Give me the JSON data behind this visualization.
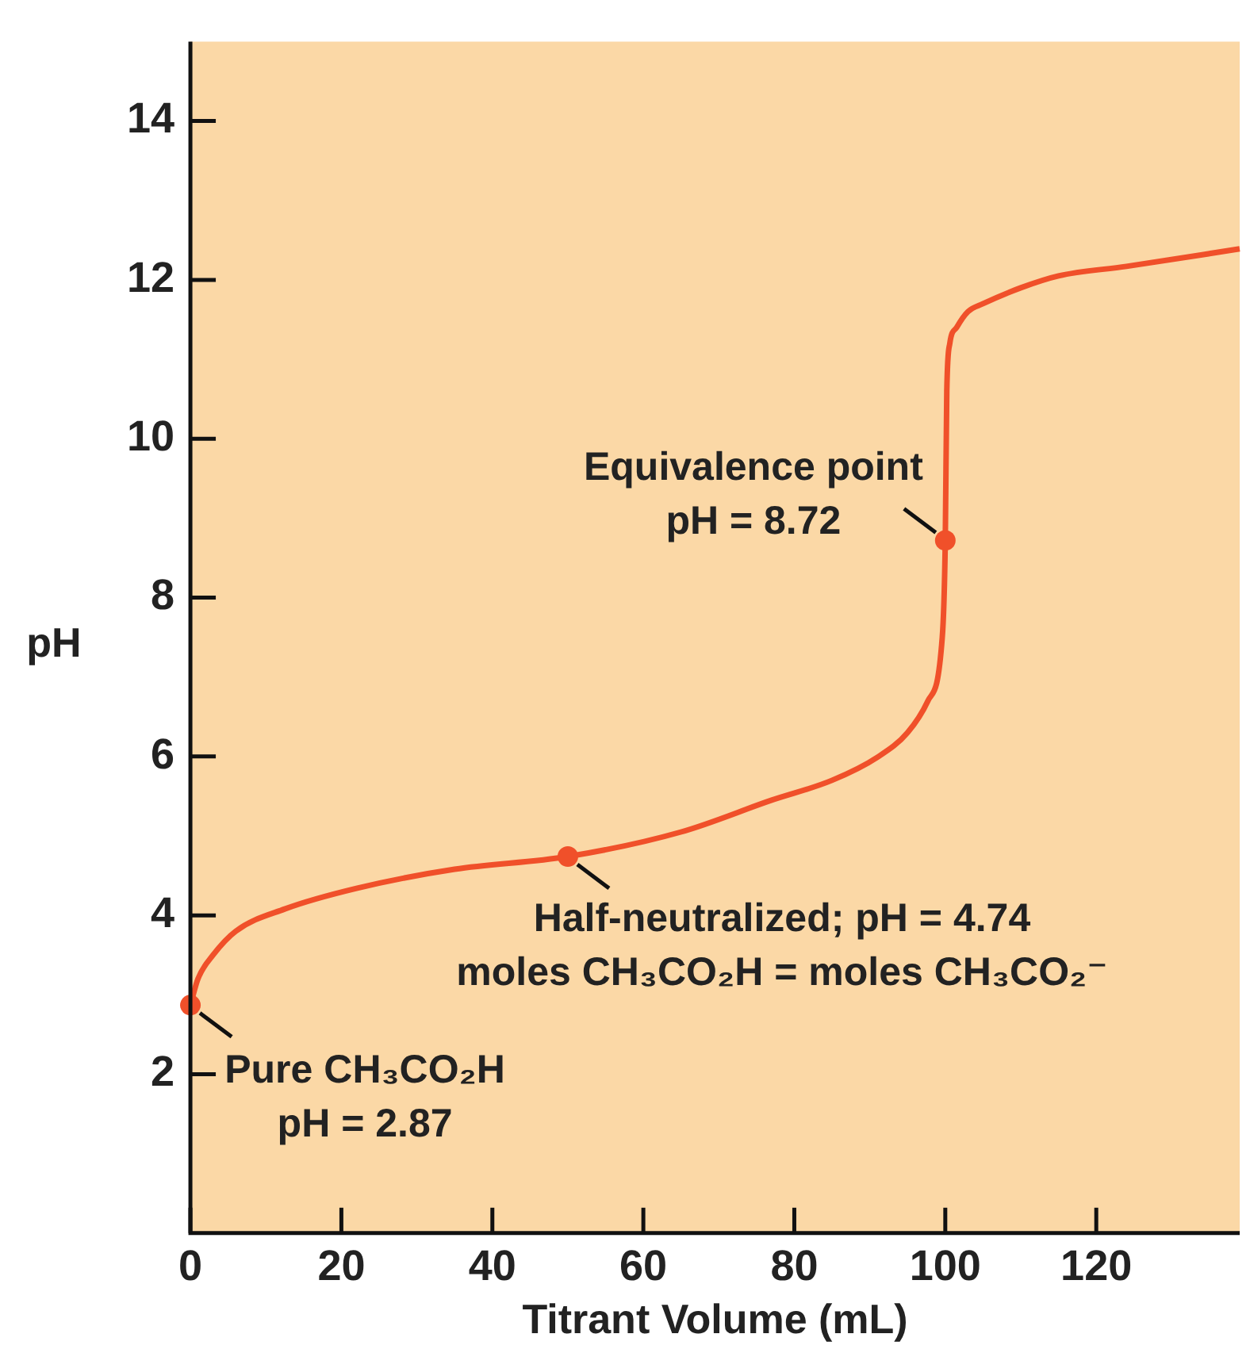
{
  "chart_data": {
    "type": "line",
    "xlabel": "Titrant Volume (mL)",
    "ylabel": "pH",
    "xlim": [
      0,
      139
    ],
    "xticks": [
      0,
      20,
      40,
      60,
      80,
      100,
      120
    ],
    "ylim": [
      0,
      15
    ],
    "yticks": [
      2,
      4,
      6,
      8,
      10,
      12,
      14
    ],
    "grid": false,
    "legend": false,
    "marker": "none",
    "line_style": "solid",
    "series": [
      {
        "type": "line",
        "color": "#f0502a",
        "x": [
          0,
          1,
          3,
          6,
          12.5,
          22,
          35,
          50,
          65,
          77,
          85,
          91,
          95,
          97.7,
          99.6,
          100,
          100.2,
          100.6,
          101.5,
          103,
          105,
          110,
          115,
          124,
          139
        ],
        "values": [
          2.87,
          3.2,
          3.5,
          3.8,
          4.08,
          4.34,
          4.58,
          4.74,
          5.05,
          5.45,
          5.7,
          5.99,
          6.3,
          6.7,
          7.5,
          8.72,
          10.6,
          11.2,
          11.4,
          11.6,
          11.7,
          11.9,
          12.05,
          12.17,
          12.39
        ]
      },
      {
        "type": "scatter",
        "color": "#f0502a",
        "marker": "circle",
        "x": [
          0,
          50,
          100
        ],
        "values": [
          2.87,
          4.74,
          8.72
        ]
      }
    ],
    "annotations": [
      {
        "text": "Pure CH₃CO₂H\npH = 2.87",
        "x": 0,
        "y": 2.87
      },
      {
        "text": "Half-neutralized; pH = 4.74\nmoles CH₃CO₂H = moles CH₃CO₂⁻",
        "x": 50,
        "y": 4.74
      },
      {
        "text": "Equivalence point\npH = 8.72",
        "x": 100,
        "y": 8.72
      }
    ]
  }
}
